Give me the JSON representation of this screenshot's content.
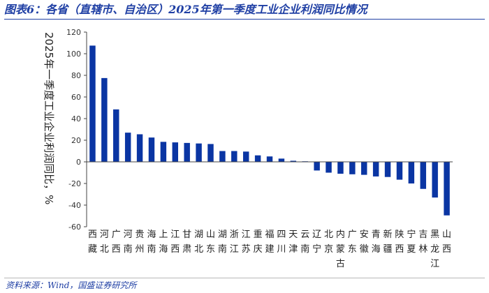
{
  "header": {
    "title": "图表6：各省（直辖市、自治区）2025年第一季度工业企业利润同比情况"
  },
  "footer": {
    "source": "资料来源：Wind，国盛证券研究所"
  },
  "colors": {
    "accent": "#1f3fa4",
    "bar": "#0a35a3"
  },
  "chart_data": {
    "type": "bar",
    "ylabel": "2025年一季度工业企业利润同比，%",
    "ylim": [
      -60,
      120
    ],
    "yticks": [
      -60,
      -40,
      -20,
      0,
      20,
      40,
      60,
      80,
      100,
      120
    ],
    "categories": [
      "西藏",
      "河北",
      "广西",
      "河南",
      "贵州",
      "海南",
      "上海",
      "江西",
      "甘肃",
      "湖北",
      "山东",
      "湖南",
      "浙江",
      "江苏",
      "重庆",
      "福建",
      "四川",
      "天津",
      "云南",
      "辽宁",
      "北京",
      "内蒙古",
      "广东",
      "安徽",
      "青海",
      "新疆",
      "陕西",
      "宁夏",
      "吉林",
      "黑龙江",
      "山西"
    ],
    "values": [
      107.5,
      77.5,
      48.5,
      27,
      25.5,
      22.5,
      18.5,
      18,
      17.5,
      17,
      16.5,
      10,
      10,
      9.5,
      6,
      5,
      3,
      1,
      0.5,
      -8,
      -10,
      -11,
      -11.5,
      -12,
      -13.5,
      -14,
      -16.5,
      -20,
      -25,
      -33,
      -49.5
    ]
  }
}
